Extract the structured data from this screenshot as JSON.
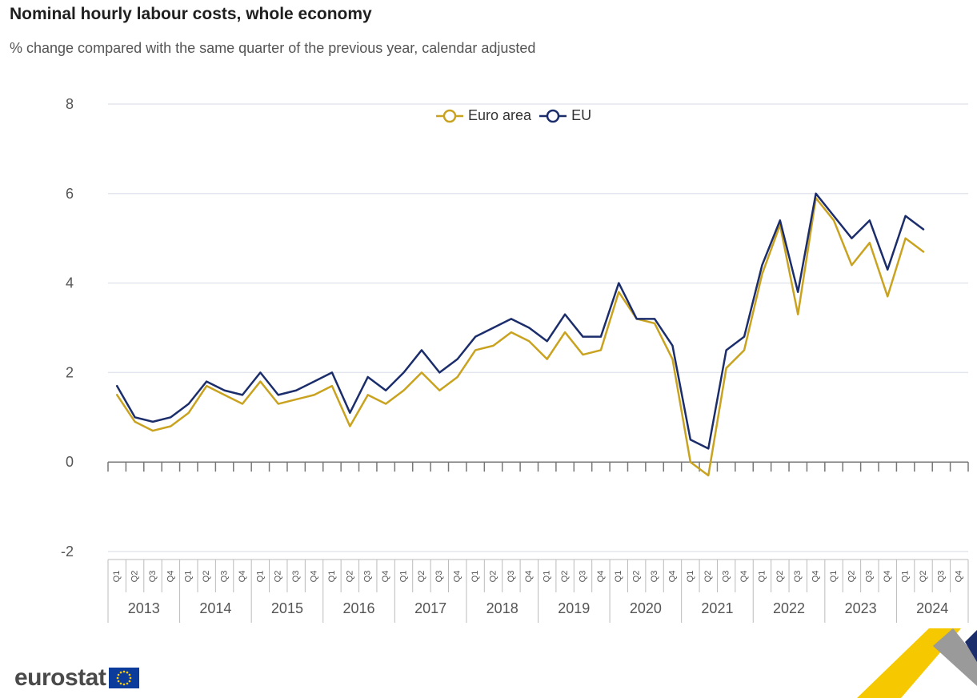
{
  "header": {
    "title": "Nominal hourly labour costs, whole economy",
    "subtitle": "% change compared with the same quarter of the previous year, calendar adjusted"
  },
  "logo": {
    "text": "eurostat"
  },
  "colors": {
    "euro_area": "#c9a31f",
    "eu": "#1b2d6b",
    "grid": "#e3e6ee",
    "axis": "#777777"
  },
  "chart_data": {
    "type": "line",
    "title": "Nominal hourly labour costs, whole economy",
    "subtitle": "% change compared with the same quarter of the previous year, calendar adjusted",
    "xlabel": "",
    "ylabel": "",
    "ylim": [
      -2,
      8
    ],
    "yticks": [
      -2,
      0,
      2,
      4,
      6,
      8
    ],
    "legend": "top-center",
    "years": [
      "2013",
      "2014",
      "2015",
      "2016",
      "2017",
      "2018",
      "2019",
      "2020",
      "2021",
      "2022",
      "2023",
      "2024"
    ],
    "quarters": [
      "Q1",
      "Q2",
      "Q3",
      "Q4"
    ],
    "series": [
      {
        "name": "Euro area",
        "values": [
          1.5,
          0.9,
          0.7,
          0.8,
          1.1,
          1.7,
          1.5,
          1.3,
          1.8,
          1.3,
          1.4,
          1.5,
          1.7,
          0.8,
          1.5,
          1.3,
          1.6,
          2.0,
          1.6,
          1.9,
          2.5,
          2.6,
          2.9,
          2.7,
          2.3,
          2.9,
          2.4,
          2.5,
          3.8,
          3.2,
          3.1,
          2.3,
          0.0,
          -0.3,
          2.1,
          2.5,
          4.2,
          5.3,
          3.3,
          5.9,
          5.4,
          4.4,
          4.9,
          3.7,
          5.0,
          4.7
        ]
      },
      {
        "name": "EU",
        "values": [
          1.7,
          1.0,
          0.9,
          1.0,
          1.3,
          1.8,
          1.6,
          1.5,
          2.0,
          1.5,
          1.6,
          1.8,
          2.0,
          1.1,
          1.9,
          1.6,
          2.0,
          2.5,
          2.0,
          2.3,
          2.8,
          3.0,
          3.2,
          3.0,
          2.7,
          3.3,
          2.8,
          2.8,
          4.0,
          3.2,
          3.2,
          2.6,
          0.5,
          0.3,
          2.5,
          2.8,
          4.4,
          5.4,
          3.8,
          6.0,
          5.5,
          5.0,
          5.4,
          4.3,
          5.5,
          5.2
        ]
      }
    ]
  }
}
